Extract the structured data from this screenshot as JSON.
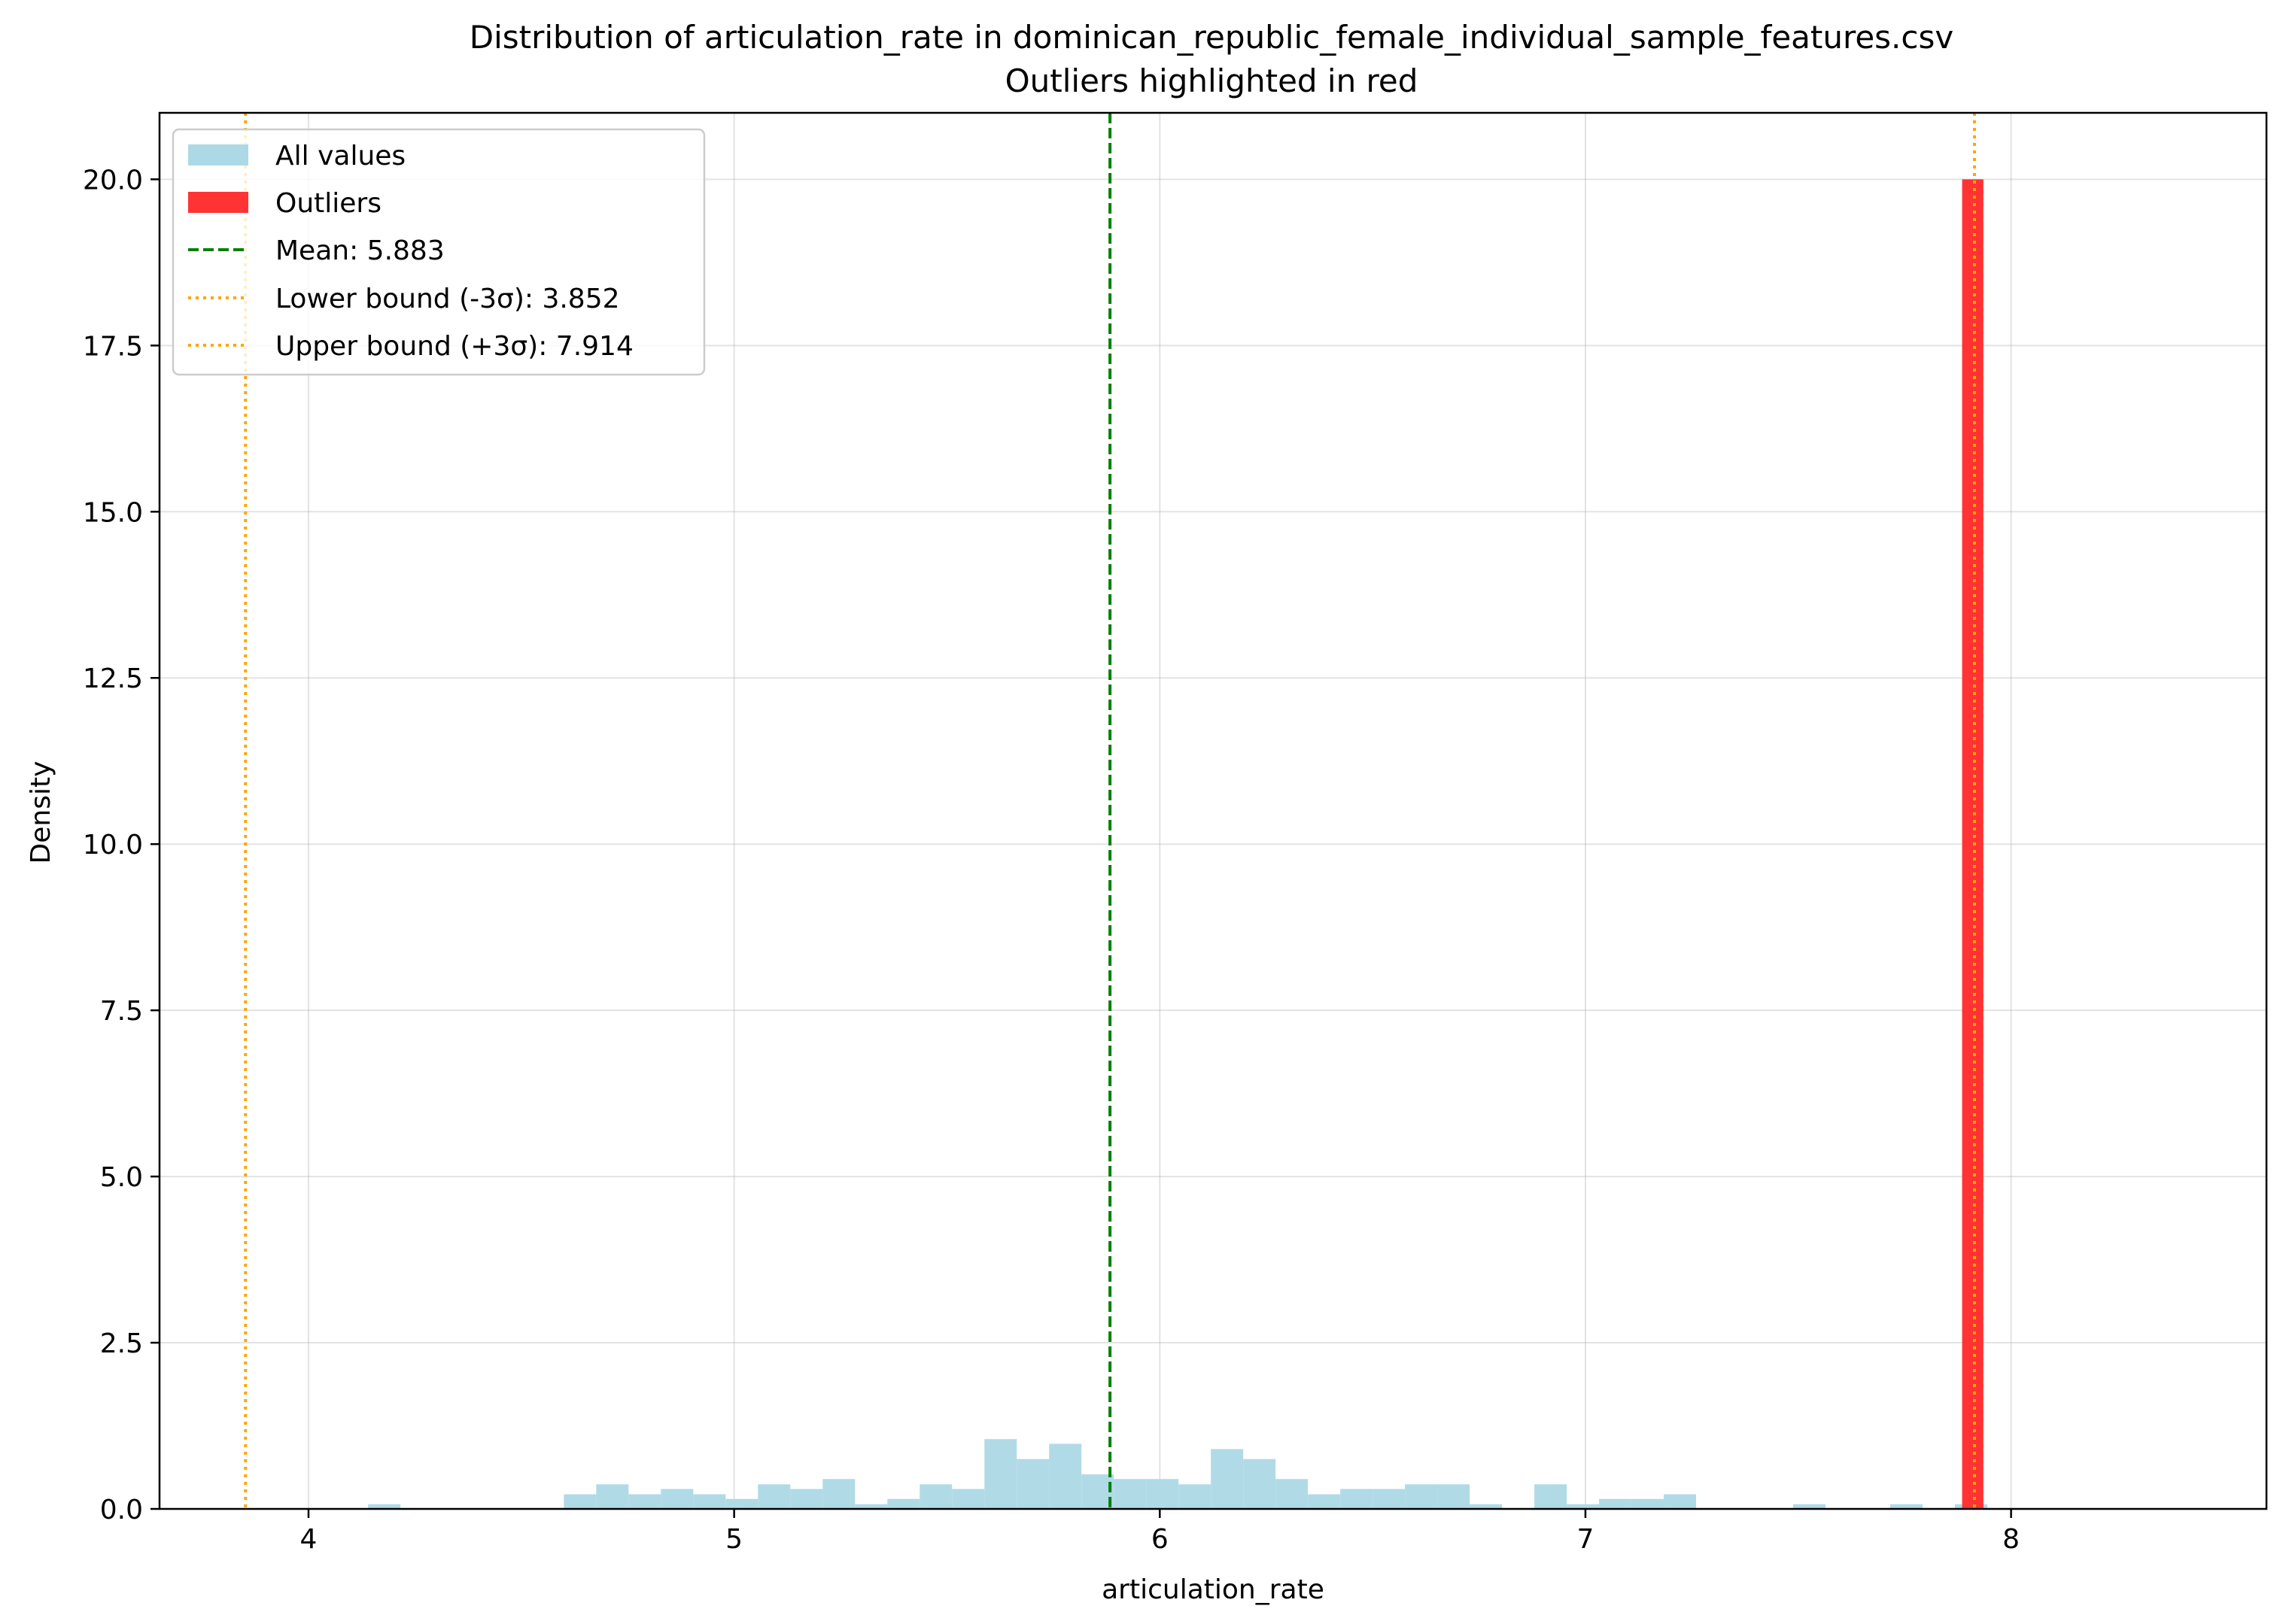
{
  "chart_data": {
    "type": "histogram",
    "title": "Distribution of articulation_rate in dominican_republic_female_individual_sample_features.csv",
    "subtitle": "Outliers highlighted in red",
    "xlabel": "articulation_rate",
    "ylabel": "Density",
    "xlim": [
      3.65,
      8.6
    ],
    "ylim": [
      0,
      21
    ],
    "xticks": [
      4,
      5,
      6,
      7,
      8
    ],
    "xtick_labels": [
      "4",
      "5",
      "6",
      "7",
      "8"
    ],
    "yticks": [
      0,
      2.5,
      5,
      7.5,
      10,
      12.5,
      15,
      17.5,
      20
    ],
    "ytick_labels": [
      "0.0",
      "2.5",
      "5.0",
      "7.5",
      "10.0",
      "12.5",
      "15.0",
      "17.5",
      "20.0"
    ],
    "grid": true,
    "legend_location": "upper left",
    "bin_width": 0.076,
    "series": [
      {
        "name": "All values",
        "color": "#add8e6",
        "bins": [
          {
            "x0": 4.14,
            "density": 0.07
          },
          {
            "x0": 4.6,
            "density": 0.22
          },
          {
            "x0": 4.676,
            "density": 0.37
          },
          {
            "x0": 4.752,
            "density": 0.22
          },
          {
            "x0": 4.828,
            "density": 0.3
          },
          {
            "x0": 4.904,
            "density": 0.22
          },
          {
            "x0": 4.98,
            "density": 0.15
          },
          {
            "x0": 5.056,
            "density": 0.37
          },
          {
            "x0": 5.132,
            "density": 0.3
          },
          {
            "x0": 5.208,
            "density": 0.45
          },
          {
            "x0": 5.284,
            "density": 0.07
          },
          {
            "x0": 5.36,
            "density": 0.15
          },
          {
            "x0": 5.436,
            "density": 0.37
          },
          {
            "x0": 5.512,
            "density": 0.3
          },
          {
            "x0": 5.588,
            "density": 1.05
          },
          {
            "x0": 5.664,
            "density": 0.75
          },
          {
            "x0": 5.74,
            "density": 0.98
          },
          {
            "x0": 5.816,
            "density": 0.52
          },
          {
            "x0": 5.892,
            "density": 0.45
          },
          {
            "x0": 5.968,
            "density": 0.45
          },
          {
            "x0": 6.044,
            "density": 0.37
          },
          {
            "x0": 6.12,
            "density": 0.9
          },
          {
            "x0": 6.196,
            "density": 0.75
          },
          {
            "x0": 6.272,
            "density": 0.45
          },
          {
            "x0": 6.348,
            "density": 0.22
          },
          {
            "x0": 6.424,
            "density": 0.3
          },
          {
            "x0": 6.5,
            "density": 0.3
          },
          {
            "x0": 6.576,
            "density": 0.37
          },
          {
            "x0": 6.652,
            "density": 0.37
          },
          {
            "x0": 6.728,
            "density": 0.07
          },
          {
            "x0": 6.88,
            "density": 0.37
          },
          {
            "x0": 6.956,
            "density": 0.07
          },
          {
            "x0": 7.032,
            "density": 0.15
          },
          {
            "x0": 7.108,
            "density": 0.15
          },
          {
            "x0": 7.184,
            "density": 0.22
          },
          {
            "x0": 7.488,
            "density": 0.07
          },
          {
            "x0": 7.716,
            "density": 0.07
          },
          {
            "x0": 7.868,
            "density": 0.07
          }
        ]
      },
      {
        "name": "Outliers",
        "color": "#ff3333",
        "bins": [
          {
            "x0": 7.885,
            "x1": 7.935,
            "density": 20.0
          }
        ]
      }
    ],
    "reference_lines": [
      {
        "name": "mean",
        "label": "Mean: 5.883",
        "x": 5.883,
        "color": "#008000",
        "style": "dashed"
      },
      {
        "name": "lower-bound",
        "label": "Lower bound (-3σ): 3.852",
        "x": 3.852,
        "color": "#ffa500",
        "style": "dotted"
      },
      {
        "name": "upper-bound",
        "label": "Upper bound (+3σ): 7.914",
        "x": 7.914,
        "color": "#ffa500",
        "style": "dotted"
      }
    ]
  }
}
